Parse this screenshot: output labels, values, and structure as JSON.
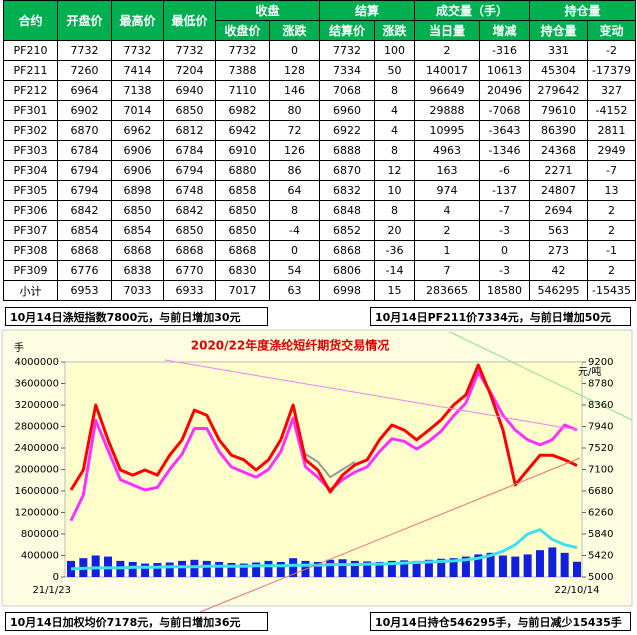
{
  "table": {
    "header_row1": [
      "合约",
      "开盘价",
      "最高价",
      "最低价",
      "收盘",
      "结算",
      "成交量（手）",
      "持仓量"
    ],
    "header_row2": [
      "收盘价",
      "涨跌",
      "结算价",
      "涨跌",
      "当日量",
      "增减",
      "持仓量",
      "变动"
    ],
    "rows": [
      [
        "PF210",
        7732,
        7732,
        7732,
        7732,
        0,
        7732,
        100,
        2,
        -316,
        331,
        -2
      ],
      [
        "PF211",
        7260,
        7414,
        7204,
        7388,
        128,
        7334,
        50,
        140017,
        10613,
        45304,
        -17379
      ],
      [
        "PF212",
        6964,
        7138,
        6940,
        7110,
        146,
        7068,
        8,
        96649,
        20496,
        279642,
        327
      ],
      [
        "PF301",
        6902,
        7014,
        6850,
        6982,
        80,
        6960,
        4,
        29888,
        -7068,
        79610,
        -4152
      ],
      [
        "PF302",
        6870,
        6962,
        6812,
        6942,
        72,
        6922,
        4,
        10995,
        -3643,
        86390,
        2811
      ],
      [
        "PF303",
        6784,
        6906,
        6784,
        6910,
        126,
        6888,
        8,
        4963,
        -1346,
        24368,
        2949
      ],
      [
        "PF304",
        6794,
        6906,
        6794,
        6880,
        86,
        6870,
        12,
        163,
        -6,
        2271,
        -7
      ],
      [
        "PF305",
        6794,
        6898,
        6748,
        6858,
        64,
        6832,
        10,
        974,
        -137,
        24807,
        13
      ],
      [
        "PF306",
        6842,
        6850,
        6842,
        6850,
        8,
        6848,
        8,
        4,
        -7,
        2694,
        2
      ],
      [
        "PF307",
        6854,
        6854,
        6850,
        6850,
        -4,
        6852,
        20,
        2,
        -3,
        563,
        2
      ],
      [
        "PF308",
        6868,
        6868,
        6868,
        6868,
        0,
        6868,
        -36,
        1,
        0,
        273,
        -1
      ],
      [
        "PF309",
        6776,
        6838,
        6770,
        6830,
        54,
        6806,
        -14,
        7,
        -3,
        42,
        2
      ],
      [
        "小计",
        6953,
        7033,
        6933,
        7017,
        63,
        6998,
        15,
        283665,
        18580,
        546295,
        -15435
      ]
    ]
  },
  "notes": [
    "10月14日涤短指数7800元，与前日增加30元",
    "10月14日PF211价7334元，与前日增加50元",
    "10月14日加权均价7178元，与前日增加36元",
    "10月14日持仓546295手，与前日减少15435手"
  ],
  "chart_data": {
    "type": "combo",
    "title": "2020/22年度涤纶短纤期货交易情况",
    "y_label": "手",
    "y2_label": "元/吨",
    "categories": [
      "21/1/23",
      null,
      null,
      null,
      null,
      null,
      null,
      null,
      null,
      null,
      null,
      null,
      null,
      null,
      null,
      null,
      null,
      null,
      null,
      null,
      null,
      null,
      null,
      null,
      null,
      null,
      null,
      null,
      null,
      null,
      null,
      null,
      null,
      null,
      null,
      null,
      null,
      null,
      null,
      null,
      null,
      "22/10/14"
    ],
    "ylim": [
      0,
      4000000
    ],
    "yticks": [
      0,
      400000,
      800000,
      1200000,
      1600000,
      2000000,
      2400000,
      2800000,
      3200000,
      3600000,
      4000000
    ],
    "y2lim": [
      5000,
      9200
    ],
    "y2ticks": [
      5000,
      5420,
      5840,
      6260,
      6680,
      7100,
      7520,
      7940,
      8360,
      8780,
      9200
    ],
    "series": [
      {
        "type": "bar",
        "color": "#1020e0",
        "values": [
          300000,
          350000,
          400000,
          380000,
          300000,
          280000,
          250000,
          260000,
          270000,
          300000,
          320000,
          300000,
          280000,
          260000,
          250000,
          270000,
          300000,
          280000,
          350000,
          300000,
          280000,
          320000,
          330000,
          300000,
          290000,
          280000,
          300000,
          310000,
          300000,
          320000,
          340000,
          350000,
          380000,
          420000,
          450000,
          400000,
          380000,
          420000,
          500000,
          550000,
          450000,
          283665
        ]
      },
      {
        "type": "line",
        "color": "#40e0f0",
        "width": 3,
        "values": [
          150000,
          160000,
          170000,
          170000,
          170000,
          180000,
          180000,
          180000,
          190000,
          190000,
          190000,
          200000,
          200000,
          200000,
          200000,
          210000,
          210000,
          210000,
          220000,
          220000,
          220000,
          230000,
          230000,
          230000,
          240000,
          240000,
          250000,
          260000,
          270000,
          280000,
          290000,
          300000,
          320000,
          350000,
          400000,
          480000,
          600000,
          800000,
          880000,
          700000,
          600000,
          546295
        ]
      },
      {
        "type": "line",
        "axis": "y2",
        "color": "#999999",
        "width": 2,
        "values": [
          null,
          null,
          null,
          null,
          null,
          null,
          null,
          null,
          null,
          null,
          null,
          null,
          null,
          null,
          null,
          null,
          null,
          null,
          null,
          7400,
          7250,
          6950,
          7100,
          7250,
          null,
          null,
          null,
          null,
          null,
          null,
          null,
          null,
          null,
          null,
          null,
          null,
          null,
          null,
          null,
          null,
          null,
          null
        ]
      },
      {
        "type": "line",
        "axis": "y2",
        "color": "#ff30ff",
        "width": 3,
        "values": [
          6100,
          6600,
          8060,
          7480,
          6900,
          6800,
          6700,
          6750,
          7100,
          7400,
          7900,
          7900,
          7450,
          7150,
          7050,
          6950,
          7100,
          7450,
          8100,
          7150,
          6950,
          6700,
          6900,
          7050,
          7150,
          7450,
          7700,
          7650,
          7500,
          7650,
          7850,
          8150,
          8400,
          9000,
          8600,
          8160,
          7870,
          7680,
          7580,
          7680,
          7970,
          7870
        ]
      },
      {
        "type": "line",
        "axis": "y2",
        "color": "#ff0000",
        "width": 3,
        "values": [
          6700,
          7090,
          8360,
          7680,
          7090,
          6990,
          7090,
          6990,
          7380,
          7680,
          8260,
          8160,
          7680,
          7380,
          7290,
          7090,
          7290,
          7680,
          8360,
          7290,
          7090,
          6660,
          6990,
          7190,
          7290,
          7680,
          7970,
          7870,
          7680,
          7870,
          8070,
          8360,
          8560,
          9140,
          8560,
          7870,
          6800,
          7090,
          7380,
          7380,
          7290,
          7178
        ]
      }
    ]
  }
}
